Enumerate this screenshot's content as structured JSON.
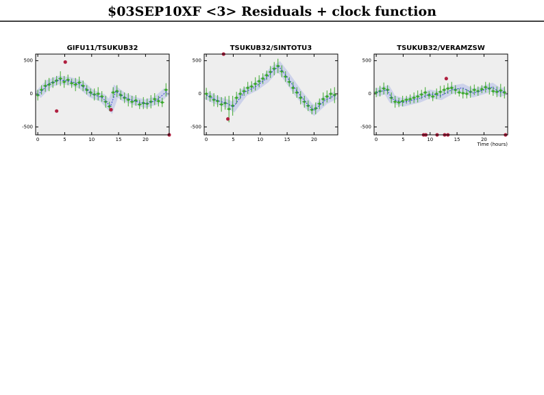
{
  "title": "$03SEP10XF <3> Residuals + clock function",
  "chart_data": [
    {
      "type": "scatter",
      "title": "GIFU11/TSUKUB32",
      "xlim": [
        -0.4,
        24.4
      ],
      "ylim": [
        -620,
        600
      ],
      "xticks": [
        0,
        5,
        10,
        15,
        20
      ],
      "yticks": [
        -500,
        0,
        500
      ],
      "series": [
        {
          "color": "#3aa82a",
          "x": [
            0,
            0.7,
            1.4,
            2.1,
            2.8,
            3.5,
            4.2,
            4.9,
            5.6,
            6.3,
            7,
            7.7,
            8.4,
            9.1,
            9.8,
            10.5,
            11.2,
            11.9,
            12.6,
            13.3,
            14,
            14.7,
            15.4,
            16.1,
            16.8,
            17.5,
            18.2,
            18.9,
            19.6,
            20.3,
            21,
            21.7,
            22.4,
            23.1,
            23.8
          ],
          "values": [
            -20,
            60,
            120,
            140,
            170,
            200,
            230,
            180,
            210,
            160,
            140,
            170,
            120,
            60,
            20,
            -10,
            0,
            -40,
            -120,
            -190,
            20,
            40,
            -20,
            -60,
            -90,
            -120,
            -100,
            -160,
            -140,
            -150,
            -120,
            -80,
            -110,
            -130,
            60
          ],
          "errors": [
            80,
            70,
            90,
            100,
            80,
            70,
            110,
            90,
            80,
            70,
            100,
            90,
            80,
            70,
            60,
            90,
            100,
            80,
            90,
            70,
            80,
            90,
            70,
            80,
            100,
            90,
            80,
            70,
            90,
            80,
            100,
            90,
            80,
            70,
            100
          ]
        },
        {
          "color": "#b02040",
          "x": [
            3.5,
            5.1,
            13.6,
            24.4
          ],
          "values": [
            -260,
            480,
            -240,
            -620
          ]
        },
        {
          "color": "#3040d0",
          "x": [
            0,
            2,
            4,
            6,
            8,
            10,
            12,
            13.5,
            14.5,
            16,
            18,
            20,
            22,
            24
          ],
          "values": [
            -20,
            150,
            210,
            190,
            140,
            0,
            -60,
            -190,
            40,
            -50,
            -110,
            -150,
            -100,
            40
          ]
        }
      ]
    },
    {
      "type": "scatter",
      "title": "TSUKUB32/SINTOTU3",
      "xlim": [
        -0.4,
        24.4
      ],
      "ylim": [
        -620,
        600
      ],
      "xticks": [
        0,
        5,
        10,
        15,
        20
      ],
      "yticks": [
        -500,
        0,
        500
      ],
      "series": [
        {
          "color": "#3aa82a",
          "x": [
            0,
            0.7,
            1.4,
            2.1,
            2.8,
            3.5,
            4.2,
            4.9,
            5.6,
            6.3,
            7,
            7.7,
            8.4,
            9.1,
            9.8,
            10.5,
            11.2,
            11.9,
            12.6,
            13.3,
            14,
            14.7,
            15.4,
            16.1,
            16.8,
            17.5,
            18.2,
            18.9,
            19.6,
            20.3,
            21,
            21.7,
            22.4,
            23.1,
            23.8
          ],
          "values": [
            0,
            -40,
            -90,
            -110,
            -160,
            -140,
            -230,
            -180,
            -60,
            0,
            40,
            90,
            110,
            150,
            190,
            230,
            280,
            330,
            380,
            420,
            340,
            260,
            180,
            90,
            20,
            -60,
            -120,
            -180,
            -240,
            -220,
            -150,
            -80,
            -40,
            0,
            -20
          ],
          "errors": [
            90,
            80,
            100,
            90,
            110,
            100,
            200,
            150,
            90,
            80,
            70,
            90,
            80,
            100,
            90,
            80,
            70,
            90,
            100,
            110,
            90,
            80,
            70,
            90,
            80,
            100,
            90,
            80,
            70,
            90,
            80,
            100,
            90,
            80,
            120
          ]
        },
        {
          "color": "#b02040",
          "x": [
            3.2,
            4.0
          ],
          "values": [
            600,
            -380
          ]
        },
        {
          "color": "#3040d0",
          "x": [
            0,
            2,
            4,
            5,
            7,
            9,
            11,
            12.5,
            13.5,
            15,
            17,
            19,
            20,
            22,
            24
          ],
          "values": [
            -20,
            -100,
            -150,
            -200,
            20,
            100,
            220,
            360,
            410,
            250,
            20,
            -180,
            -250,
            -100,
            -20
          ]
        }
      ]
    },
    {
      "type": "scatter",
      "title": "TSUKUB32/VERAMZSW",
      "xlabel": "Time (hours)",
      "xlim": [
        -0.4,
        24.4
      ],
      "ylim": [
        -620,
        600
      ],
      "xticks": [
        0,
        5,
        10,
        15,
        20
      ],
      "yticks": [
        -500,
        0,
        500
      ],
      "series": [
        {
          "color": "#3aa82a",
          "x": [
            0,
            0.7,
            1.4,
            2.1,
            2.8,
            3.5,
            4.2,
            4.9,
            5.6,
            6.3,
            7,
            7.7,
            8.4,
            9.1,
            9.8,
            10.5,
            11.2,
            11.9,
            12.6,
            13.3,
            14,
            14.7,
            15.4,
            16.1,
            16.8,
            17.5,
            18.2,
            18.9,
            19.6,
            20.3,
            21,
            21.7,
            22.4,
            23.1,
            23.8
          ],
          "values": [
            20,
            40,
            80,
            60,
            -60,
            -120,
            -130,
            -110,
            -90,
            -80,
            -60,
            -40,
            -10,
            20,
            -20,
            -40,
            0,
            30,
            60,
            80,
            90,
            60,
            20,
            10,
            0,
            30,
            60,
            40,
            70,
            100,
            80,
            40,
            30,
            50,
            20
          ],
          "errors": [
            70,
            80,
            90,
            70,
            80,
            90,
            70,
            80,
            60,
            70,
            80,
            90,
            70,
            80,
            60,
            70,
            80,
            90,
            70,
            80,
            90,
            70,
            60,
            80,
            70,
            90,
            80,
            70,
            60,
            80,
            90,
            70,
            80,
            100,
            90
          ]
        },
        {
          "color": "#b02040",
          "x": [
            8.8,
            9.2,
            11.3,
            12.7,
            13.3,
            24,
            13
          ],
          "values": [
            -620,
            -620,
            -620,
            -620,
            -620,
            -620,
            230
          ]
        },
        {
          "color": "#3040d0",
          "x": [
            0,
            2,
            3,
            5,
            7,
            8,
            10,
            12,
            14,
            16,
            18,
            20,
            21.5,
            23,
            24
          ],
          "values": [
            20,
            60,
            -80,
            -130,
            -90,
            -70,
            0,
            -30,
            60,
            90,
            10,
            60,
            100,
            20,
            40
          ]
        }
      ]
    }
  ]
}
